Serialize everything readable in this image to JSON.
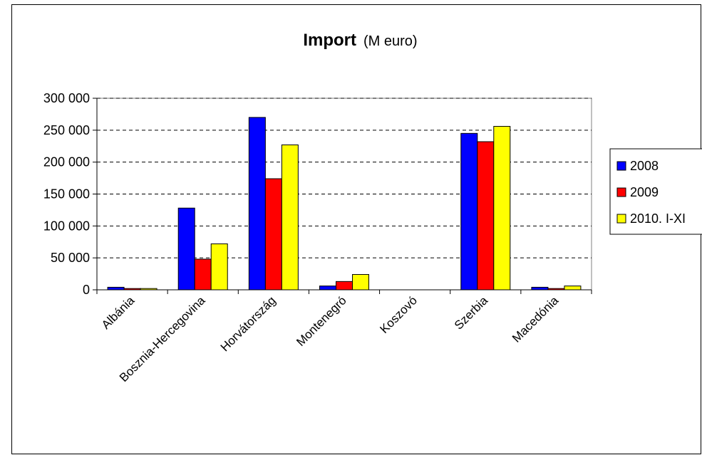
{
  "chart_data": {
    "type": "bar",
    "title": "Import",
    "subtitle": "(M euro)",
    "categories": [
      "Albánia",
      "Bosznia-Hercegovina",
      "Horvátország",
      "Montenegró",
      "Koszovó",
      "Szerbia",
      "Macedónia"
    ],
    "series": [
      {
        "name": "2008",
        "color": "#0000ff",
        "values": [
          4000,
          128000,
          270000,
          6000,
          0,
          245000,
          4000
        ]
      },
      {
        "name": "2009",
        "color": "#ff0000",
        "values": [
          2000,
          48000,
          174000,
          13000,
          0,
          232000,
          2000
        ]
      },
      {
        "name": "2010. I-XI",
        "color": "#ffff00",
        "values": [
          2000,
          72000,
          227000,
          24000,
          0,
          256000,
          6000
        ]
      }
    ],
    "ylim": [
      0,
      300000
    ],
    "yticks": [
      0,
      50000,
      100000,
      150000,
      200000,
      250000,
      300000
    ],
    "ytick_labels": [
      "0",
      "50 000",
      "100 000",
      "150 000",
      "200 000",
      "250 000",
      "300 000"
    ],
    "grid": "horizontal-dashed",
    "legend_position": "right"
  }
}
